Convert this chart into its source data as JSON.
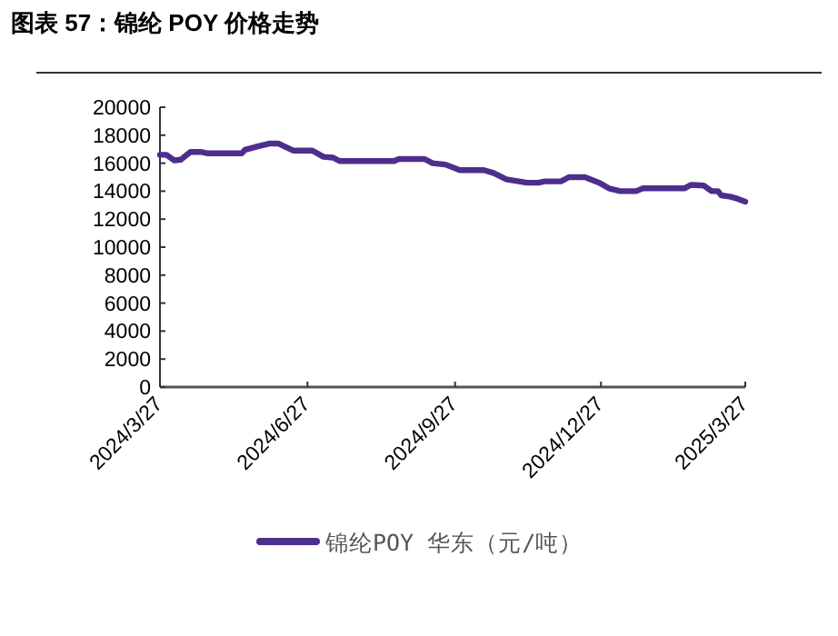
{
  "chart_data": {
    "type": "line",
    "title": "图表 57：锦纶 POY 价格走势",
    "x": [
      "2024-03-27",
      "2024-03-31",
      "2024-04-05",
      "2024-04-09",
      "2024-04-15",
      "2024-04-22",
      "2024-04-26",
      "2024-05-17",
      "2024-05-19",
      "2024-05-27",
      "2024-06-03",
      "2024-06-09",
      "2024-06-18",
      "2024-06-30",
      "2024-07-07",
      "2024-07-13",
      "2024-07-17",
      "2024-08-20",
      "2024-08-23",
      "2024-09-08",
      "2024-09-13",
      "2024-09-21",
      "2024-09-30",
      "2024-10-15",
      "2024-10-21",
      "2024-10-29",
      "2024-11-11",
      "2024-11-18",
      "2024-11-22",
      "2024-12-02",
      "2024-12-07",
      "2024-12-17",
      "2024-12-26",
      "2025-01-01",
      "2025-01-08",
      "2025-01-18",
      "2025-01-22",
      "2025-02-17",
      "2025-02-21",
      "2025-03-01",
      "2025-03-06",
      "2025-03-10",
      "2025-03-12",
      "2025-03-18",
      "2025-03-21",
      "2025-03-27"
    ],
    "series": [
      {
        "name": "锦纶POY 华东（元/吨）",
        "color": "#4f2d8c",
        "values": [
          16600,
          16600,
          16200,
          16250,
          16800,
          16800,
          16700,
          16700,
          16950,
          17200,
          17400,
          17400,
          16900,
          16900,
          16450,
          16400,
          16150,
          16150,
          16300,
          16300,
          16000,
          15900,
          15500,
          15500,
          15300,
          14850,
          14600,
          14600,
          14700,
          14700,
          15000,
          15000,
          14600,
          14200,
          14000,
          14000,
          14200,
          14200,
          14450,
          14400,
          14000,
          14000,
          13700,
          13600,
          13500,
          13250
        ]
      }
    ],
    "xlim": [
      "2024-03-27",
      "2025-03-27"
    ],
    "xticks": [
      {
        "value": "2024-03-27",
        "label": "2024/3/27"
      },
      {
        "value": "2024-06-27",
        "label": "2024/6/27"
      },
      {
        "value": "2024-09-27",
        "label": "2024/9/27"
      },
      {
        "value": "2024-12-27",
        "label": "2024/12/27"
      },
      {
        "value": "2025-03-27",
        "label": "2025/3/27"
      }
    ],
    "ylim": [
      0,
      20000
    ],
    "yticks": [
      0,
      2000,
      4000,
      6000,
      8000,
      10000,
      12000,
      14000,
      16000,
      18000,
      20000
    ],
    "grid": false,
    "legend": "bottom",
    "marker": "none",
    "line_style": "solid"
  }
}
